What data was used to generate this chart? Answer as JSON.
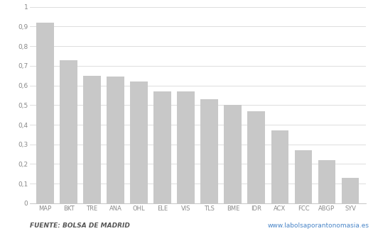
{
  "categories": [
    "MAP",
    "BKT",
    "TRE",
    "ANA",
    "OHL",
    "ELE",
    "VIS",
    "TLS",
    "BME",
    "IDR",
    "ACX",
    "FCC",
    "ABGP",
    "SYV"
  ],
  "values": [
    0.92,
    0.73,
    0.65,
    0.645,
    0.62,
    0.57,
    0.57,
    0.53,
    0.5,
    0.47,
    0.37,
    0.27,
    0.22,
    0.13
  ],
  "bar_color": "#c8c8c8",
  "bar_edge_color": "#c8c8c8",
  "ylim": [
    0,
    1.0
  ],
  "yticks": [
    0,
    0.1,
    0.2,
    0.3,
    0.4,
    0.5,
    0.6,
    0.7,
    0.8,
    0.9,
    1
  ],
  "grid_color": "#d8d8d8",
  "background_color": "#ffffff",
  "tick_fontsize": 6.5,
  "xtick_fontsize": 6.0,
  "footer_left": "FUENTE: BOLSA DE MADRID",
  "footer_right": "www.labolsaporantonomasia.es",
  "footer_fontsize": 6.5,
  "footer_right_color": "#4a86c8",
  "tick_color": "#888888"
}
